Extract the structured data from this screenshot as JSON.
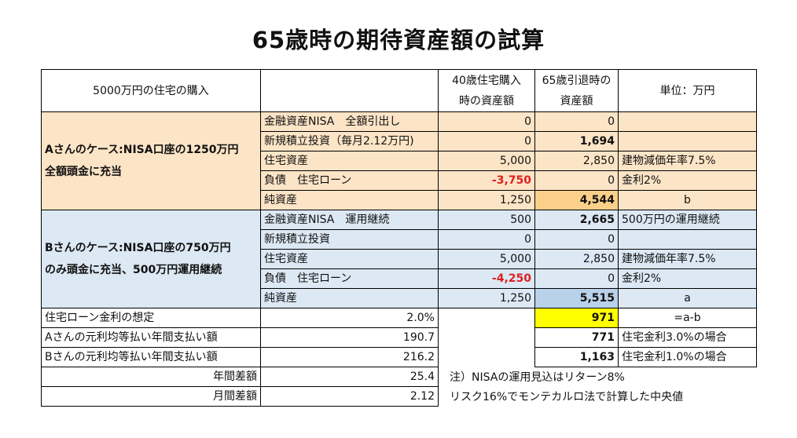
{
  "title": "65歳時の期待資産額の試算",
  "header": {
    "col1": "5000万円の住宅の購入",
    "col3_line1": "40歳住宅購入",
    "col3_line2": "時の資産額",
    "col4_line1": "65歳引退時の",
    "col4_line2": "資産額",
    "col5": "単位：万円"
  },
  "case_a": {
    "label_line1": "Aさんのケース:NISA口座の1250万円",
    "label_line2": "全額頭金に充当",
    "rows": [
      {
        "item": "金融資産NISA　全額引出し",
        "v40": "0",
        "v65": "0",
        "note": ""
      },
      {
        "item": "新規積立投資（毎月2.12万円)",
        "v40": "0",
        "v65": "1,694",
        "note": ""
      },
      {
        "item": "住宅資産",
        "v40": "5,000",
        "v65": "2,850",
        "note": "建物減価年率7.5%"
      },
      {
        "item": "負債　住宅ローン",
        "v40": "-3,750",
        "v65": "0",
        "note": "金利2%"
      },
      {
        "item": "純資産",
        "v40": "1,250",
        "v65": "4,544",
        "note": "b"
      }
    ]
  },
  "case_b": {
    "label_line1": "Bさんのケース:NISA口座の750万円",
    "label_line2": "のみ頭金に充当、500万円運用継続",
    "rows": [
      {
        "item": "金融資産NISA　運用継続",
        "v40": "500",
        "v65": "2,665",
        "note": "500万円の運用継続"
      },
      {
        "item": "新規積立投資",
        "v40": "0",
        "v65": "0",
        "note": ""
      },
      {
        "item": "住宅資産",
        "v40": "5,000",
        "v65": "2,850",
        "note": "建物減価年率7.5%"
      },
      {
        "item": "負債　住宅ローン",
        "v40": "-4,250",
        "v65": "0",
        "note": "金利2%"
      },
      {
        "item": "純資産",
        "v40": "1,250",
        "v65": "5,515",
        "note": "a"
      }
    ]
  },
  "bottom": {
    "r1": {
      "label": "住宅ローン金利の想定",
      "value": "2.0%",
      "v65": "971",
      "note": "=a-b"
    },
    "r2": {
      "label": "Aさんの元利均等払い年間支払い額",
      "value": "190.7",
      "v65": "771",
      "note": "住宅金利3.0%の場合"
    },
    "r3": {
      "label": "Bさんの元利均等払い年間支払い額",
      "value": "216.2",
      "v65": "1,163",
      "note": "住宅金利1.0%の場合"
    },
    "r4": {
      "label": "年間差額",
      "value": "25.4",
      "note": "注）NISAの運用見込はリターン8%"
    },
    "r5": {
      "label": "月間差額",
      "value": "2.12",
      "note": "リスク16%でモンテカルロ法で計算した中央値"
    }
  },
  "colors": {
    "peach": "#fce4c6",
    "peach_dark": "#fbd08a",
    "blue": "#dce8f4",
    "blue_dark": "#b9d1ea",
    "highlight_yellow": "#ffff00",
    "negative_red": "#e02020"
  }
}
